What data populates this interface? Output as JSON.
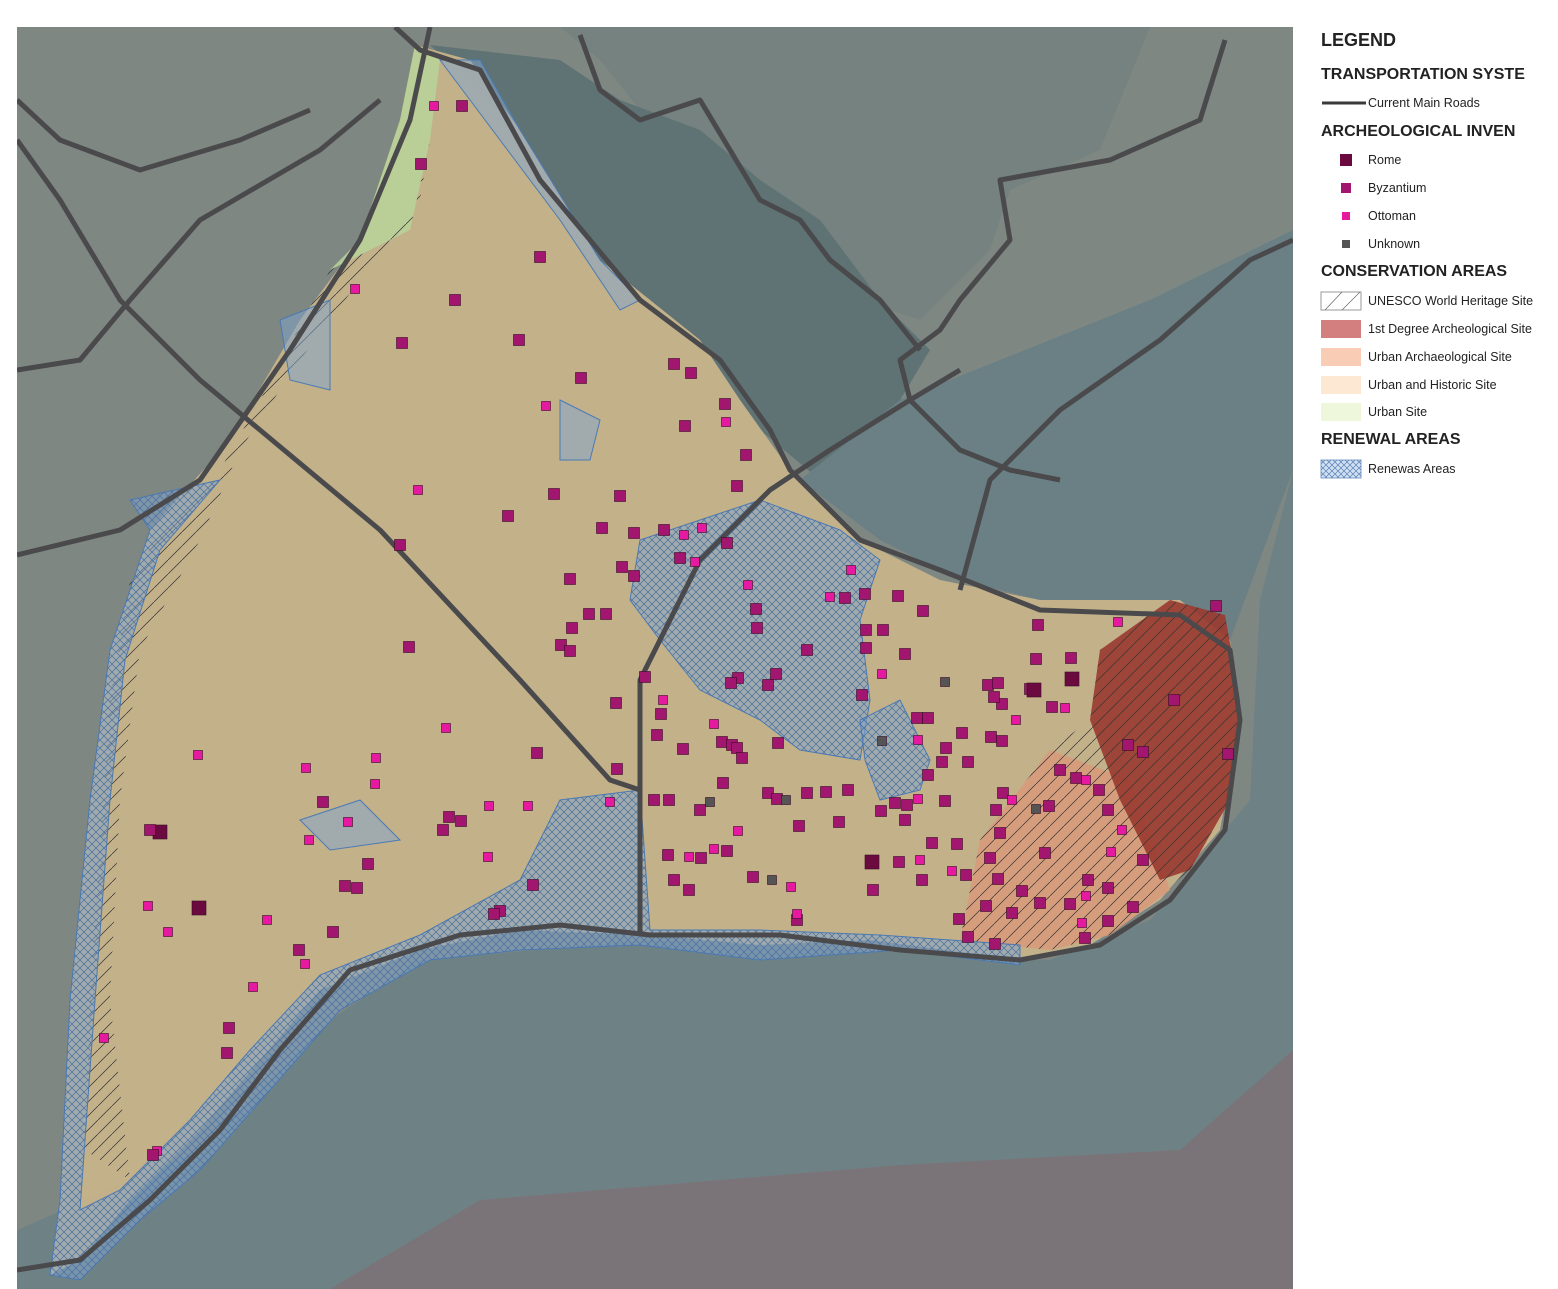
{
  "legend": {
    "title": "LEGEND",
    "sections": [
      {
        "title": "TRANSPORTATION SYSTE",
        "items": [
          {
            "label": "Current Main Roads"
          }
        ]
      },
      {
        "title": "ARCHEOLOGICAL INVEN",
        "items": [
          {
            "label": "Rome"
          },
          {
            "label": "Byzantium"
          },
          {
            "label": "Ottoman"
          },
          {
            "label": "Unknown"
          }
        ]
      },
      {
        "title": "CONSERVATION AREAS",
        "items": [
          {
            "label": "UNESCO World Heritage Site"
          },
          {
            "label": "1st Degree Archeological Site"
          },
          {
            "label": "Urban Archaeological Site"
          },
          {
            "label": "Urban and Historic Site"
          },
          {
            "label": "Urban Site"
          }
        ]
      },
      {
        "title": "RENEWAL AREAS",
        "items": [
          {
            "label": "Renewas Areas"
          }
        ]
      }
    ]
  }
}
